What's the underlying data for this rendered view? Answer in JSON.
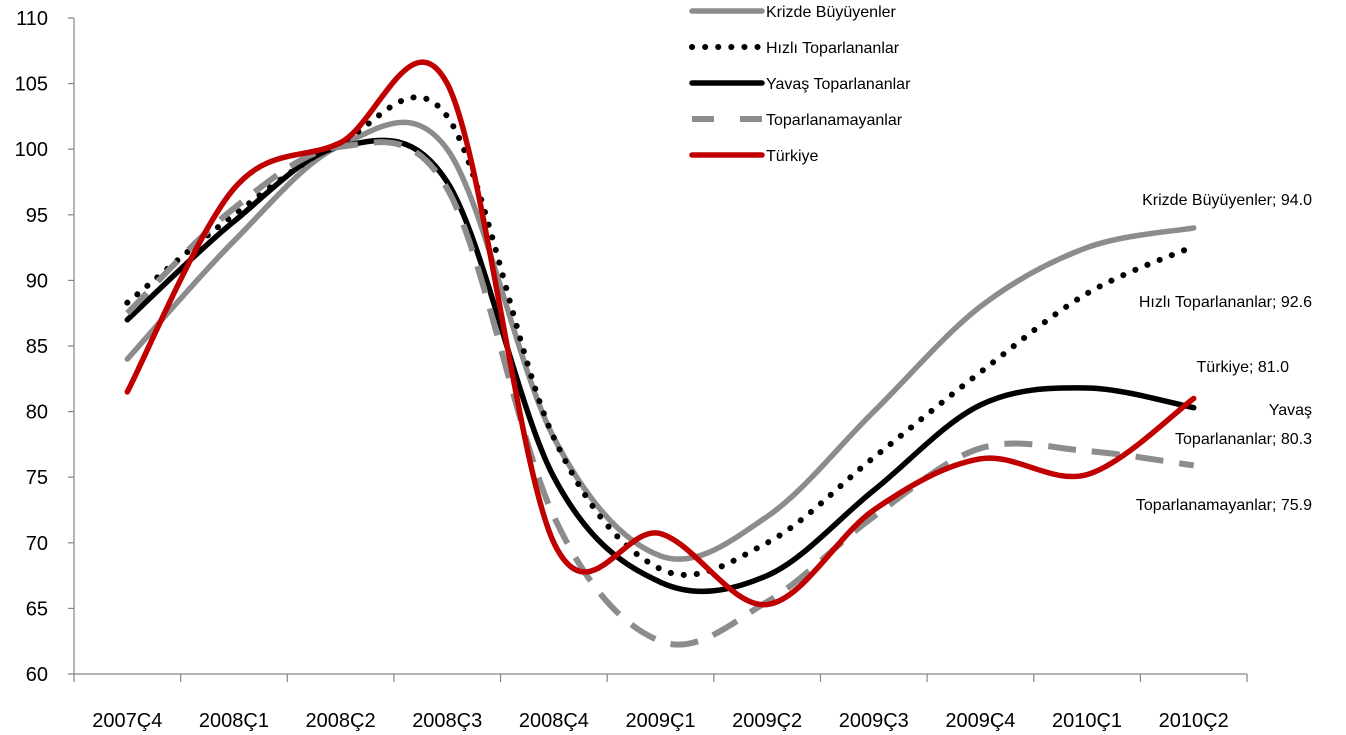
{
  "chart_data": {
    "type": "line",
    "title": "",
    "xlabel": "",
    "ylabel": "",
    "ylim": [
      60,
      110
    ],
    "yticks": [
      60,
      65,
      70,
      75,
      80,
      85,
      90,
      95,
      100,
      105,
      110
    ],
    "categories": [
      "2007Ç4",
      "2008Ç1",
      "2008Ç2",
      "2008Ç3",
      "2008Ç4",
      "2009Ç1",
      "2009Ç2",
      "2009Ç3",
      "2009Ç4",
      "2010Ç1",
      "2010Ç2"
    ],
    "grid": false,
    "legend_position": "top-right",
    "series": [
      {
        "name": "Krizde Büyüyenler",
        "color": "#8c8c8c",
        "style": "solid",
        "values": [
          84.0,
          93.0,
          100.3,
          100.0,
          78.0,
          69.0,
          72.0,
          80.0,
          88.0,
          92.5,
          94.0
        ]
      },
      {
        "name": "Hızlı Toparlananlar",
        "color": "#000000",
        "style": "dotted",
        "values": [
          88.3,
          95.0,
          100.5,
          102.5,
          78.0,
          68.0,
          70.0,
          76.5,
          83.0,
          89.0,
          92.6
        ]
      },
      {
        "name": "Yavaş Toparlananlar",
        "color": "#000000",
        "style": "solid",
        "values": [
          87.0,
          94.5,
          100.2,
          97.5,
          75.0,
          67.0,
          67.5,
          74.0,
          80.5,
          81.8,
          80.3
        ]
      },
      {
        "name": "Toparlanamayanlar",
        "color": "#8c8c8c",
        "style": "dashed",
        "values": [
          87.5,
          95.5,
          100.2,
          97.0,
          72.0,
          62.5,
          65.5,
          72.0,
          77.2,
          77.0,
          75.9
        ]
      },
      {
        "name": "Türkiye",
        "color": "#c00000",
        "style": "solid",
        "values": [
          81.5,
          97.0,
          100.5,
          105.0,
          70.0,
          70.7,
          65.3,
          72.5,
          76.4,
          75.2,
          81.0
        ]
      }
    ],
    "annotations": [
      {
        "series": "Krizde Büyüyenler",
        "lines": [
          "Krizde Büyüyenler;  94.0"
        ]
      },
      {
        "series": "Hızlı Toparlananlar",
        "lines": [
          "Hızlı Toparlananlar; 92.6"
        ]
      },
      {
        "series": "Türkiye",
        "lines": [
          "Türkiye; 81.0"
        ]
      },
      {
        "series": "Yavaş Toparlananlar",
        "lines": [
          "Yavaş",
          "Toparlananlar;  80.3"
        ]
      },
      {
        "series": "Toparlanamayanlar",
        "lines": [
          "Toparlanamayanlar; 75.9"
        ]
      }
    ]
  }
}
